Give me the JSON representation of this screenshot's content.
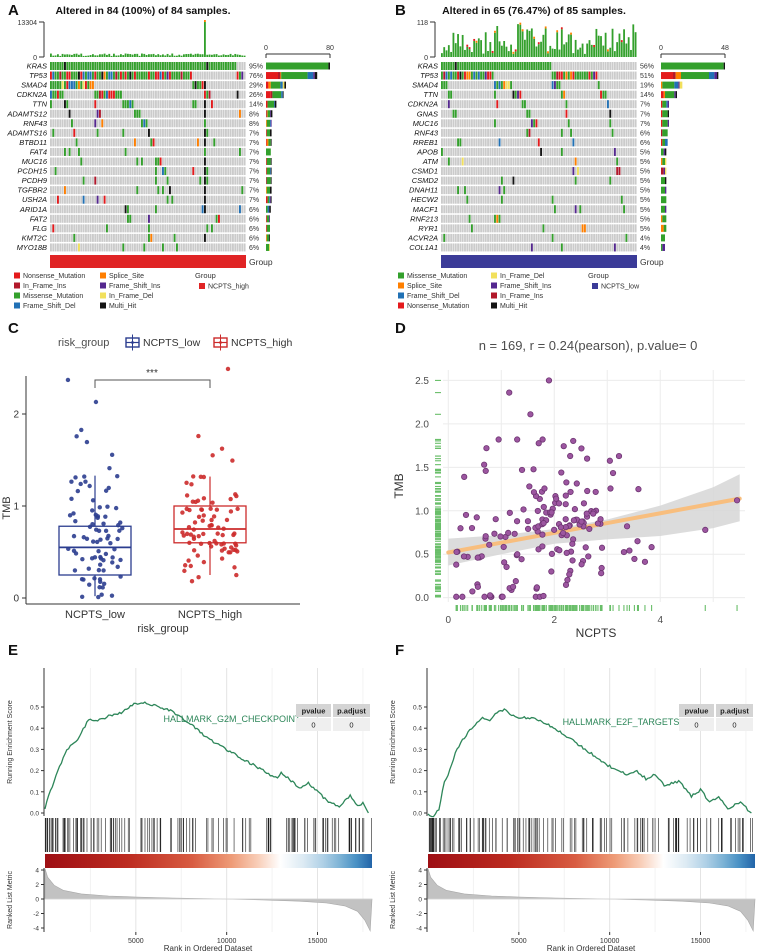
{
  "mutation_colors": {
    "Missense_Mutation": "#33A02C",
    "Nonsense_Mutation": "#E41A1C",
    "Splice_Site": "#FF7F00",
    "Frame_Shift_Del": "#2171B5",
    "Frame_Shift_Ins": "#54278F",
    "In_Frame_Del": "#F2E05C",
    "In_Frame_Ins": "#B2182B",
    "Multi_Hit": "#141414"
  },
  "onco_type_weights": {
    "default": {
      "Missense_Mutation": 0.62,
      "Nonsense_Mutation": 0.11,
      "Frame_Shift_Del": 0.08,
      "Frame_Shift_Ins": 0.05,
      "Splice_Site": 0.05,
      "In_Frame_Del": 0.04,
      "In_Frame_Ins": 0.02,
      "Multi_Hit": 0.03
    },
    "KRAS": {
      "Missense_Mutation": 0.94,
      "Multi_Hit": 0.04,
      "Nonsense_Mutation": 0.02
    },
    "TP53": {
      "Missense_Mutation": 0.48,
      "Nonsense_Mutation": 0.2,
      "Frame_Shift_Del": 0.1,
      "Frame_Shift_Ins": 0.08,
      "Splice_Site": 0.06,
      "In_Frame_Ins": 0.04,
      "Multi_Hit": 0.04
    }
  },
  "chart_data": [
    {
      "panel": "A",
      "type": "oncoplot",
      "title": "Altered in 84 (100%) of 84 samples.",
      "n_samples": 84,
      "tmb_axis": {
        "max_label": "13304",
        "min_label": "0"
      },
      "right_axis": {
        "min_label": "0",
        "max_label": "80",
        "max": 80
      },
      "group": {
        "label": "Group",
        "name": "NCPTS_high",
        "color": "#E02425"
      },
      "top_bar_style": "spike",
      "spike_col_frac": 0.78,
      "genes": [
        {
          "name": "KRAS",
          "pct": 95
        },
        {
          "name": "TP53",
          "pct": 76
        },
        {
          "name": "SMAD4",
          "pct": 29
        },
        {
          "name": "CDKN2A",
          "pct": 26
        },
        {
          "name": "TTN",
          "pct": 14
        },
        {
          "name": "ADAMTS12",
          "pct": 8
        },
        {
          "name": "RNF43",
          "pct": 8
        },
        {
          "name": "ADAMTS16",
          "pct": 7
        },
        {
          "name": "BTBD11",
          "pct": 7
        },
        {
          "name": "FAT4",
          "pct": 7
        },
        {
          "name": "MUC16",
          "pct": 7
        },
        {
          "name": "PCDH15",
          "pct": 7
        },
        {
          "name": "PCDH9",
          "pct": 7
        },
        {
          "name": "TGFBR2",
          "pct": 7
        },
        {
          "name": "USH2A",
          "pct": 7
        },
        {
          "name": "ARID1A",
          "pct": 6
        },
        {
          "name": "FAT2",
          "pct": 6
        },
        {
          "name": "FLG",
          "pct": 6
        },
        {
          "name": "KMT2C",
          "pct": 6
        },
        {
          "name": "MYO18B",
          "pct": 6
        }
      ],
      "legend_cols": [
        [
          "Nonsense_Mutation",
          "In_Frame_Ins",
          "Missense_Mutation",
          "Frame_Shift_Del"
        ],
        [
          "Splice_Site",
          "Frame_Shift_Ins",
          "In_Frame_Del",
          "Multi_Hit"
        ]
      ]
    },
    {
      "panel": "B",
      "type": "oncoplot",
      "title": "Altered in 65 (76.47%) of 85 samples.",
      "n_samples": 85,
      "tmb_axis": {
        "max_label": "118",
        "min_label": "0"
      },
      "right_axis": {
        "min_label": "0",
        "max_label": "48",
        "max": 48
      },
      "group": {
        "label": "Group",
        "name": "NCPTS_low",
        "color": "#3B3B98"
      },
      "top_bar_style": "varied",
      "genes": [
        {
          "name": "KRAS",
          "pct": 56
        },
        {
          "name": "TP53",
          "pct": 51
        },
        {
          "name": "SMAD4",
          "pct": 19
        },
        {
          "name": "TTN",
          "pct": 14
        },
        {
          "name": "CDKN2A",
          "pct": 7
        },
        {
          "name": "GNAS",
          "pct": 7
        },
        {
          "name": "MUC16",
          "pct": 7
        },
        {
          "name": "RNF43",
          "pct": 6
        },
        {
          "name": "RREB1",
          "pct": 6
        },
        {
          "name": "APOB",
          "pct": 5
        },
        {
          "name": "ATM",
          "pct": 5
        },
        {
          "name": "CSMD1",
          "pct": 5
        },
        {
          "name": "CSMD2",
          "pct": 5
        },
        {
          "name": "DNAH11",
          "pct": 5
        },
        {
          "name": "HECW2",
          "pct": 5
        },
        {
          "name": "MACF1",
          "pct": 5
        },
        {
          "name": "RNF213",
          "pct": 5
        },
        {
          "name": "RYR1",
          "pct": 5
        },
        {
          "name": "ACVR2A",
          "pct": 4
        },
        {
          "name": "COL1A1",
          "pct": 4
        }
      ],
      "legend_cols": [
        [
          "Missense_Mutation",
          "Splice_Site",
          "Frame_Shift_Del",
          "Nonsense_Mutation"
        ],
        [
          "In_Frame_Del",
          "Frame_Shift_Ins",
          "In_Frame_Ins",
          "Multi_Hit"
        ]
      ]
    },
    {
      "panel": "C",
      "type": "box",
      "legend_title": "risk_group",
      "ylabel": "TMB",
      "xlabel": "risk_group",
      "yticks": [
        "0",
        "1",
        "2"
      ],
      "significance": "***",
      "groups": [
        {
          "name": "NCPTS_low",
          "color": "#2B3D8F",
          "n": 85,
          "box": {
            "min": 0.02,
            "q1": 0.25,
            "median": 0.55,
            "q3": 0.78,
            "max": 1.33
          },
          "outliers": [
            2.38,
            2.12,
            1.82,
            1.75,
            1.7,
            1.55,
            1.42
          ]
        },
        {
          "name": "NCPTS_high",
          "color": "#CC2B2B",
          "n": 84,
          "box": {
            "min": 0.25,
            "q1": 0.6,
            "median": 0.75,
            "q3": 1.0,
            "max": 1.32
          },
          "outliers": [
            2.5,
            1.75,
            1.62,
            1.55,
            1.5,
            0.25
          ]
        }
      ]
    },
    {
      "panel": "D",
      "type": "scatter",
      "title": "n = 169, r = 0.24(pearson), p.value= 0",
      "n": 169,
      "r_pearson": 0.24,
      "xlabel": "NCPTS",
      "ylabel": "TMB",
      "xticks": [
        "0",
        "2",
        "4"
      ],
      "yticks": [
        "0.0",
        "0.5",
        "1.0",
        "1.5",
        "2.0",
        "2.5"
      ],
      "point_color": "#9C56A0",
      "point_stroke": "#6E3572",
      "trend_color": "#F8BE7E",
      "band_color": "#D6D6D6",
      "rug_color": "#69BE69",
      "trend": {
        "x0": 0,
        "y0": 0.52,
        "x1": 5.5,
        "y1": 1.14
      },
      "band_upper": [
        [
          0,
          0.68
        ],
        [
          1,
          0.72
        ],
        [
          2,
          0.79
        ],
        [
          3,
          0.9
        ],
        [
          4,
          1.06
        ],
        [
          5,
          1.27
        ],
        [
          5.5,
          1.42
        ]
      ],
      "band_lower": [
        [
          0,
          0.37
        ],
        [
          1,
          0.5
        ],
        [
          2,
          0.62
        ],
        [
          3,
          0.67
        ],
        [
          4,
          0.71
        ],
        [
          5,
          0.8
        ],
        [
          5.5,
          0.88
        ]
      ],
      "highlight_points": [
        [
          1.9,
          2.5
        ],
        [
          1.15,
          2.36
        ],
        [
          1.55,
          2.11
        ],
        [
          0.95,
          1.82
        ],
        [
          1.3,
          1.82
        ],
        [
          1.78,
          1.82
        ],
        [
          2.3,
          1.63
        ],
        [
          2.62,
          1.6
        ],
        [
          0.72,
          1.72
        ],
        [
          0.3,
          1.39
        ],
        [
          4.85,
          0.78
        ],
        [
          5.45,
          1.12
        ]
      ]
    },
    {
      "panel": "E",
      "type": "gsea",
      "set_label": "HALLMARK_G2M_CHECKPOINT",
      "stats": {
        "headers": [
          "pvalue",
          "p.adjust"
        ],
        "values": [
          "0",
          "0"
        ]
      },
      "ylabel_top": "Running Enrichment Score",
      "ylabel_bottom": "Ranked List Metric",
      "xlabel": "Rank in Ordered Dataset",
      "xticks": [
        "5000",
        "10000",
        "15000"
      ],
      "es_yticks": [
        "0.0",
        "0.1",
        "0.2",
        "0.3",
        "0.4",
        "0.5"
      ],
      "metric_yticks": [
        "4",
        "2",
        "0",
        "-2",
        "-4"
      ],
      "x_max": 18000,
      "curve_color": "#2D8659",
      "label_pos": [
        232,
        82
      ],
      "es_anchors": [
        [
          0,
          0.02
        ],
        [
          200,
          0.08
        ],
        [
          700,
          0.2
        ],
        [
          1200,
          0.3
        ],
        [
          1800,
          0.35
        ],
        [
          2400,
          0.44
        ],
        [
          3000,
          0.44
        ],
        [
          3600,
          0.46
        ],
        [
          4200,
          0.47
        ],
        [
          4800,
          0.51
        ],
        [
          5300,
          0.52
        ],
        [
          6000,
          0.51
        ],
        [
          7000,
          0.48
        ],
        [
          8000,
          0.42
        ],
        [
          9000,
          0.35
        ],
        [
          10000,
          0.3
        ],
        [
          11000,
          0.25
        ],
        [
          12000,
          0.2
        ],
        [
          12800,
          0.16
        ],
        [
          13000,
          0.19
        ],
        [
          14000,
          0.12
        ],
        [
          14500,
          0.14
        ],
        [
          15500,
          0.06
        ],
        [
          16200,
          0.03
        ],
        [
          16800,
          0.08
        ],
        [
          17200,
          0.03
        ],
        [
          17500,
          0.05
        ],
        [
          17800,
          0.0
        ]
      ],
      "metric_anchors": [
        [
          0,
          4.2
        ],
        [
          150,
          3.0
        ],
        [
          500,
          1.9
        ],
        [
          1000,
          1.2
        ],
        [
          2000,
          0.7
        ],
        [
          3500,
          0.42
        ],
        [
          5000,
          0.27
        ],
        [
          7000,
          0.14
        ],
        [
          9000,
          0.04
        ],
        [
          10000,
          -0.02
        ],
        [
          12000,
          -0.12
        ],
        [
          14000,
          -0.3
        ],
        [
          15500,
          -0.55
        ],
        [
          16500,
          -0.95
        ],
        [
          17200,
          -1.7
        ],
        [
          17600,
          -2.9
        ],
        [
          17900,
          -4.4
        ]
      ],
      "gradient_stops": [
        [
          "0%",
          "#9E0F14"
        ],
        [
          "25%",
          "#BC2B20"
        ],
        [
          "45%",
          "#D85C42"
        ],
        [
          "57%",
          "#EE9B77"
        ],
        [
          "65%",
          "#F8CDB7"
        ],
        [
          "72%",
          "#FFFFFF"
        ],
        [
          "79%",
          "#DCEAF3"
        ],
        [
          "85%",
          "#AFD0E6"
        ],
        [
          "90%",
          "#7FB4D6"
        ],
        [
          "95%",
          "#4A92C5"
        ],
        [
          "100%",
          "#2264A8"
        ]
      ]
    },
    {
      "panel": "F",
      "type": "gsea",
      "set_label": "HALLMARK_E2F_TARGETS",
      "stats": {
        "headers": [
          "pvalue",
          "p.adjust"
        ],
        "values": [
          "0",
          "0"
        ]
      },
      "ylabel_top": "Running Enrichment Score",
      "ylabel_bottom": "Ranked List Metric",
      "xlabel": "Rank in Ordered Dataset",
      "xticks": [
        "5000",
        "10000",
        "15000"
      ],
      "es_yticks": [
        "0.0",
        "0.1",
        "0.2",
        "0.3",
        "0.4",
        "0.5"
      ],
      "metric_yticks": [
        "4",
        "2",
        "0",
        "-2",
        "-4"
      ],
      "x_max": 18000,
      "curve_color": "#2D8659",
      "label_pos": [
        238,
        85
      ],
      "es_anchors": [
        [
          0,
          0.0
        ],
        [
          300,
          -0.02
        ],
        [
          600,
          0.02
        ],
        [
          900,
          0.15
        ],
        [
          1200,
          0.2
        ],
        [
          1500,
          0.28
        ],
        [
          1800,
          0.33
        ],
        [
          2200,
          0.38
        ],
        [
          2600,
          0.42
        ],
        [
          3000,
          0.45
        ],
        [
          3400,
          0.44
        ],
        [
          3800,
          0.47
        ],
        [
          4200,
          0.49
        ],
        [
          4600,
          0.46
        ],
        [
          5000,
          0.45
        ],
        [
          5500,
          0.45
        ],
        [
          6000,
          0.44
        ],
        [
          7000,
          0.4
        ],
        [
          8000,
          0.34
        ],
        [
          9000,
          0.28
        ],
        [
          10000,
          0.22
        ],
        [
          11000,
          0.18
        ],
        [
          11500,
          0.2
        ],
        [
          12000,
          0.16
        ],
        [
          12500,
          0.18
        ],
        [
          13000,
          0.13
        ],
        [
          13800,
          0.15
        ],
        [
          14500,
          0.08
        ],
        [
          15000,
          0.11
        ],
        [
          15500,
          0.05
        ],
        [
          16000,
          0.08
        ],
        [
          16500,
          0.02
        ],
        [
          17200,
          0.05
        ],
        [
          17800,
          0.0
        ]
      ],
      "metric_anchors": [
        [
          0,
          4.2
        ],
        [
          150,
          3.0
        ],
        [
          500,
          1.9
        ],
        [
          1000,
          1.2
        ],
        [
          2000,
          0.7
        ],
        [
          3500,
          0.42
        ],
        [
          5000,
          0.27
        ],
        [
          7000,
          0.14
        ],
        [
          9000,
          0.04
        ],
        [
          10000,
          -0.02
        ],
        [
          12000,
          -0.12
        ],
        [
          14000,
          -0.3
        ],
        [
          15500,
          -0.55
        ],
        [
          16500,
          -0.95
        ],
        [
          17200,
          -1.7
        ],
        [
          17600,
          -2.9
        ],
        [
          17900,
          -4.4
        ]
      ],
      "gradient_stops": [
        [
          "0%",
          "#9E0F14"
        ],
        [
          "25%",
          "#BC2B20"
        ],
        [
          "45%",
          "#D85C42"
        ],
        [
          "57%",
          "#EE9B77"
        ],
        [
          "65%",
          "#F8CDB7"
        ],
        [
          "72%",
          "#FFFFFF"
        ],
        [
          "79%",
          "#DCEAF3"
        ],
        [
          "85%",
          "#AFD0E6"
        ],
        [
          "90%",
          "#7FB4D6"
        ],
        [
          "95%",
          "#4A92C5"
        ],
        [
          "100%",
          "#2264A8"
        ]
      ]
    }
  ]
}
